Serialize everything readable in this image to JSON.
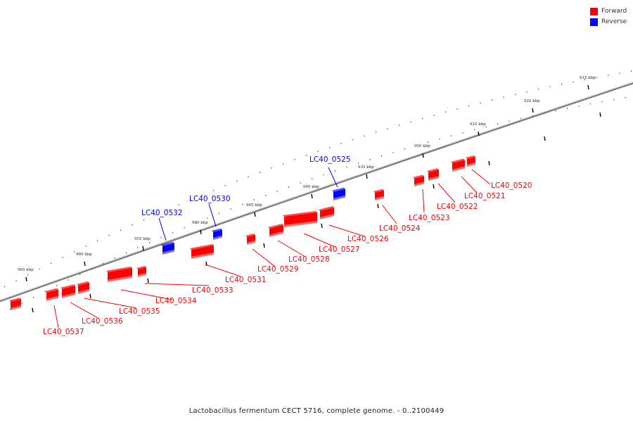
{
  "legend": [
    {
      "label": "Forward",
      "color": "#ff0000"
    },
    {
      "label": "Reverse",
      "color": "#0000ff"
    }
  ],
  "caption": "Lactobacillus fermentum CECT 5716, complete genome. - 0..2100449",
  "colors": {
    "forward": "#ff0000",
    "forward_shade": "#b80000",
    "reverse": "#0000ff",
    "reverse_shade": "#0000a8",
    "backbone": "#7a7a7a"
  },
  "ticks": [
    "915 kbp",
    "920 kbp",
    "925 kbp",
    "930 kbp",
    "935 kbp",
    "940 kbp",
    "945 kbp",
    "950 kbp",
    "955 kbp",
    "960 kbp",
    "965 kbp"
  ],
  "genes": [
    {
      "label": "LC40_0520",
      "strand": "forward"
    },
    {
      "label": "LC40_0521",
      "strand": "forward"
    },
    {
      "label": "LC40_0522",
      "strand": "forward"
    },
    {
      "label": "LC40_0523",
      "strand": "forward"
    },
    {
      "label": "LC40_0524",
      "strand": "forward"
    },
    {
      "label": "LC40_0525",
      "strand": "reverse"
    },
    {
      "label": "LC40_0526",
      "strand": "forward"
    },
    {
      "label": "LC40_0527",
      "strand": "forward"
    },
    {
      "label": "LC40_0528",
      "strand": "forward"
    },
    {
      "label": "LC40_0529",
      "strand": "forward"
    },
    {
      "label": "LC40_0530",
      "strand": "reverse"
    },
    {
      "label": "LC40_0531",
      "strand": "forward"
    },
    {
      "label": "LC40_0532",
      "strand": "reverse"
    },
    {
      "label": "LC40_0533",
      "strand": "forward"
    },
    {
      "label": "LC40_0534",
      "strand": "forward"
    },
    {
      "label": "LC40_0535",
      "strand": "forward"
    },
    {
      "label": "LC40_0536",
      "strand": "forward"
    },
    {
      "label": "LC40_0537",
      "strand": "forward"
    }
  ]
}
